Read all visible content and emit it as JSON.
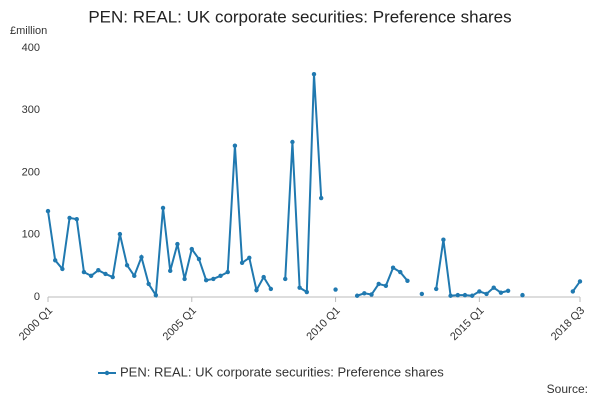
{
  "chart_data": {
    "type": "line",
    "title": "PEN: REAL: UK corporate securities: Preference shares",
    "y_label": "£million",
    "source": "Source:",
    "categories": [
      "2000 Q1",
      null,
      null,
      null,
      null,
      null,
      null,
      null,
      null,
      null,
      null,
      null,
      null,
      null,
      null,
      null,
      null,
      null,
      null,
      null,
      "2005 Q1",
      null,
      null,
      null,
      null,
      null,
      null,
      null,
      null,
      null,
      null,
      null,
      null,
      null,
      null,
      null,
      null,
      null,
      null,
      null,
      "2010 Q1",
      null,
      null,
      null,
      null,
      null,
      null,
      null,
      null,
      null,
      null,
      null,
      null,
      null,
      null,
      null,
      null,
      null,
      null,
      null,
      "2015 Q1",
      null,
      null,
      null,
      null,
      null,
      null,
      null,
      null,
      null,
      null,
      null,
      null,
      null,
      "2018 Q3"
    ],
    "series": [
      {
        "name": "PEN: REAL: UK corporate securities: Preference shares",
        "color": "#2079b0",
        "values": [
          138,
          59,
          45,
          127,
          125,
          40,
          34,
          43,
          37,
          32,
          101,
          51,
          34,
          64,
          21,
          3,
          143,
          42,
          85,
          29,
          77,
          61,
          27,
          29,
          34,
          40,
          243,
          55,
          63,
          11,
          32,
          13,
          null,
          29,
          249,
          15,
          8,
          358,
          159,
          null,
          12,
          null,
          null,
          2,
          6,
          4,
          21,
          18,
          47,
          40,
          26,
          null,
          5,
          null,
          13,
          92,
          2,
          3,
          3,
          2,
          9,
          5,
          15,
          7,
          10,
          null,
          3,
          null,
          null,
          null,
          null,
          null,
          null,
          9,
          25
        ]
      }
    ],
    "ylim": [
      0,
      400
    ],
    "yticks": [
      0,
      100,
      200,
      300,
      400
    ],
    "grid": false
  }
}
